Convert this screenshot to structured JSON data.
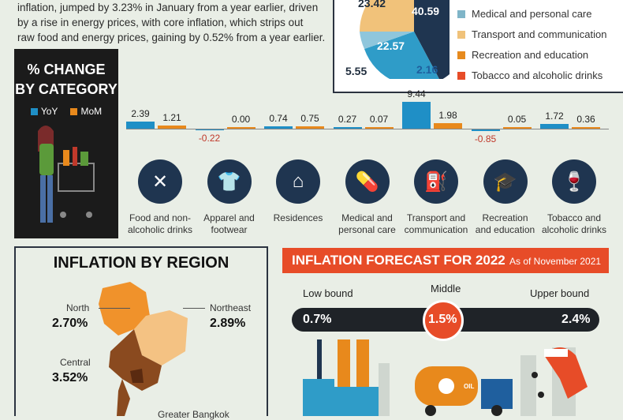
{
  "intro": {
    "line1": "inflation, jumped by 3.23% in January from a year earlier, driven",
    "line2": "by a rise in energy prices, with core inflation, which strips out",
    "line3": "raw food and energy prices, gaining by 0.52% from a year earlier."
  },
  "pie": {
    "labels": [
      "23.42",
      "40.59",
      "22.57",
      "2.16",
      "5.55"
    ],
    "legend": [
      {
        "label": "Medical and personal care",
        "color": "#7fb5c8"
      },
      {
        "label": "Transport and communication",
        "color": "#f0c27a"
      },
      {
        "label": "Recreation and education",
        "color": "#e68a1e"
      },
      {
        "label": "Tobacco and alcoholic drinks",
        "color": "#e74c28"
      }
    ]
  },
  "category_box": {
    "title_line1": "% CHANGE",
    "title_line2": "BY CATEGORY",
    "yoy": "YoY",
    "mom": "MoM"
  },
  "chart_data": {
    "type": "bar",
    "categories": [
      "Food and non-alcoholic drinks",
      "Apparel and footwear",
      "Residences",
      "Medical and personal care",
      "Transport and communication",
      "Recreation and education",
      "Tobacco and alcoholic drinks"
    ],
    "series": [
      {
        "name": "YoY",
        "values": [
          2.39,
          -0.22,
          0.74,
          0.27,
          9.44,
          -0.85,
          1.72
        ]
      },
      {
        "name": "MoM",
        "values": [
          1.21,
          0.0,
          0.75,
          0.07,
          1.98,
          0.05,
          0.36
        ]
      }
    ],
    "value_labels": {
      "yoy": [
        "2.39",
        "-0.22",
        "0.74",
        "0.27",
        "9.44",
        "-0.85",
        "1.72"
      ],
      "mom": [
        "1.21",
        "0.00",
        "0.75",
        "0.07",
        "1.98",
        "0.05",
        "0.36"
      ]
    },
    "colors": {
      "yoy": "#1f8fc6",
      "mom": "#e8891c",
      "negative": "#c0392b"
    }
  },
  "category_labels": [
    [
      "Food and non-",
      "alcoholic drinks"
    ],
    [
      "Apparel and",
      "footwear"
    ],
    [
      "Residences",
      ""
    ],
    [
      "Medical and",
      "personal care"
    ],
    [
      "Transport and",
      "communication"
    ],
    [
      "Recreation",
      "and education"
    ],
    [
      "Tobacco and",
      "alcoholic drinks"
    ]
  ],
  "category_icons": [
    "fork-knife-icon",
    "tshirt-icon",
    "house-icon",
    "pills-icon",
    "fuel-pump-icon",
    "graduation-cap-icon",
    "wine-bottle-icon"
  ],
  "region": {
    "title": "INFLATION BY REGION",
    "north": {
      "name": "North",
      "value": "2.70%"
    },
    "northeast": {
      "name": "Northeast",
      "value": "2.89%"
    },
    "central": {
      "name": "Central",
      "value": "3.52%"
    },
    "bangkok": {
      "name": "Greater Bangkok"
    }
  },
  "forecast": {
    "title": "INFLATION FORECAST FOR 2022",
    "subtitle": "As of November 2021",
    "low_label": "Low bound",
    "mid_label": "Middle",
    "high_label": "Upper bound",
    "low_value": "0.7%",
    "mid_value": "1.5%",
    "high_value": "2.4%",
    "truck_text": "OIL"
  }
}
